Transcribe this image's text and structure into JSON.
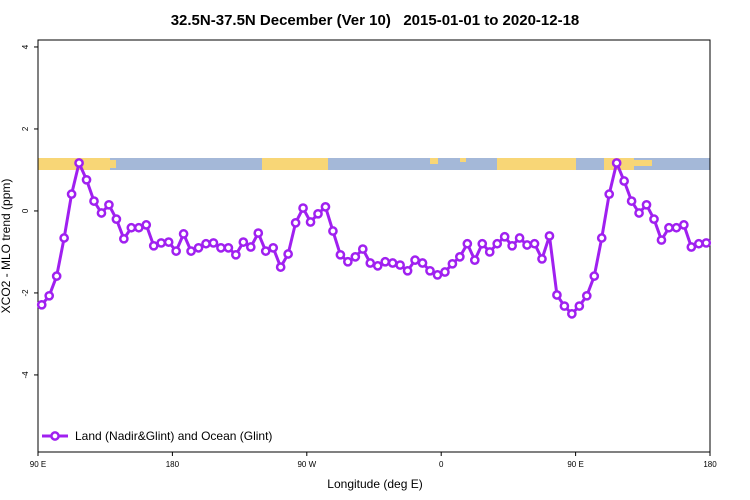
{
  "chart_data": {
    "type": "line",
    "title": "32.5N-37.5N December (Ver 10)   2015-01-01 to 2020-12-18",
    "xlabel": "Longitude (deg E)",
    "ylabel": "XCO2 - MLO trend (ppm)",
    "xlim": [
      90,
      540
    ],
    "ylim": [
      -5.88,
      4.17
    ],
    "xticks": [
      {
        "value": 90,
        "label": "90 E"
      },
      180,
      {
        "value": 270,
        "label": "90 W"
      },
      {
        "value": 360,
        "label": "0"
      },
      {
        "value": 450,
        "label": "90 E"
      },
      {
        "value": 540,
        "label": "180"
      }
    ],
    "yticks": [
      4,
      2,
      0,
      -2,
      -4
    ],
    "x": [
      92.5,
      97.5,
      102.5,
      107.5,
      112.5,
      117.5,
      122.5,
      127.5,
      132.5,
      137.5,
      142.5,
      147.5,
      152.5,
      157.5,
      162.5,
      167.5,
      172.5,
      177.5,
      182.5,
      187.5,
      192.5,
      197.5,
      202.5,
      207.5,
      212.5,
      217.5,
      222.5,
      227.5,
      232.5,
      237.5,
      242.5,
      247.5,
      252.5,
      257.5,
      262.5,
      267.5,
      272.5,
      277.5,
      282.5,
      287.5,
      292.5,
      297.5,
      302.5,
      307.5,
      312.5,
      317.5,
      322.5,
      327.5,
      332.5,
      337.5,
      342.5,
      347.5,
      352.5,
      357.5,
      362.5,
      367.5,
      372.5,
      377.5,
      382.5,
      387.5,
      392.5,
      397.5,
      402.5,
      407.5,
      412.5,
      417.5,
      422.5,
      427.5,
      432.5,
      437.5,
      442.5,
      447.5,
      452.5,
      457.5,
      462.5,
      467.5,
      472.5,
      477.5,
      482.5,
      487.5,
      492.5,
      497.5,
      502.5,
      507.5,
      512.5,
      517.5,
      522.5,
      527.5,
      532.5,
      537.5
    ],
    "series": [
      {
        "name": "Land (Nadir&Glint) and Ocean (Glint)",
        "color": "#a020f0",
        "values": [
          -2.29,
          -2.07,
          -1.59,
          -0.66,
          0.41,
          1.17,
          0.76,
          0.24,
          -0.05,
          0.15,
          -0.2,
          -0.68,
          -0.41,
          -0.41,
          -0.34,
          -0.85,
          -0.78,
          -0.76,
          -0.98,
          -0.56,
          -0.98,
          -0.9,
          -0.8,
          -0.78,
          -0.9,
          -0.9,
          -1.07,
          -0.76,
          -0.88,
          -0.54,
          -0.98,
          -0.9,
          -1.37,
          -1.05,
          -0.29,
          0.07,
          -0.27,
          -0.07,
          0.1,
          -0.49,
          -1.07,
          -1.24,
          -1.12,
          -0.93,
          -1.27,
          -1.34,
          -1.24,
          -1.27,
          -1.32,
          -1.46,
          -1.2,
          -1.27,
          -1.46,
          -1.56,
          -1.49,
          -1.29,
          -1.12,
          -0.8,
          -1.2,
          -0.8,
          -1.0,
          -0.8,
          -0.63,
          -0.85,
          -0.66,
          -0.83,
          -0.8,
          -1.17,
          -0.61,
          -2.05,
          -2.32,
          -2.51,
          -2.32,
          -2.07,
          -1.59,
          -0.66,
          0.41,
          1.17,
          0.73,
          0.24,
          -0.05,
          0.15,
          -0.2,
          -0.71,
          -0.41,
          -0.41,
          -0.34,
          -0.88,
          -0.8,
          -0.78
        ]
      }
    ]
  }
}
